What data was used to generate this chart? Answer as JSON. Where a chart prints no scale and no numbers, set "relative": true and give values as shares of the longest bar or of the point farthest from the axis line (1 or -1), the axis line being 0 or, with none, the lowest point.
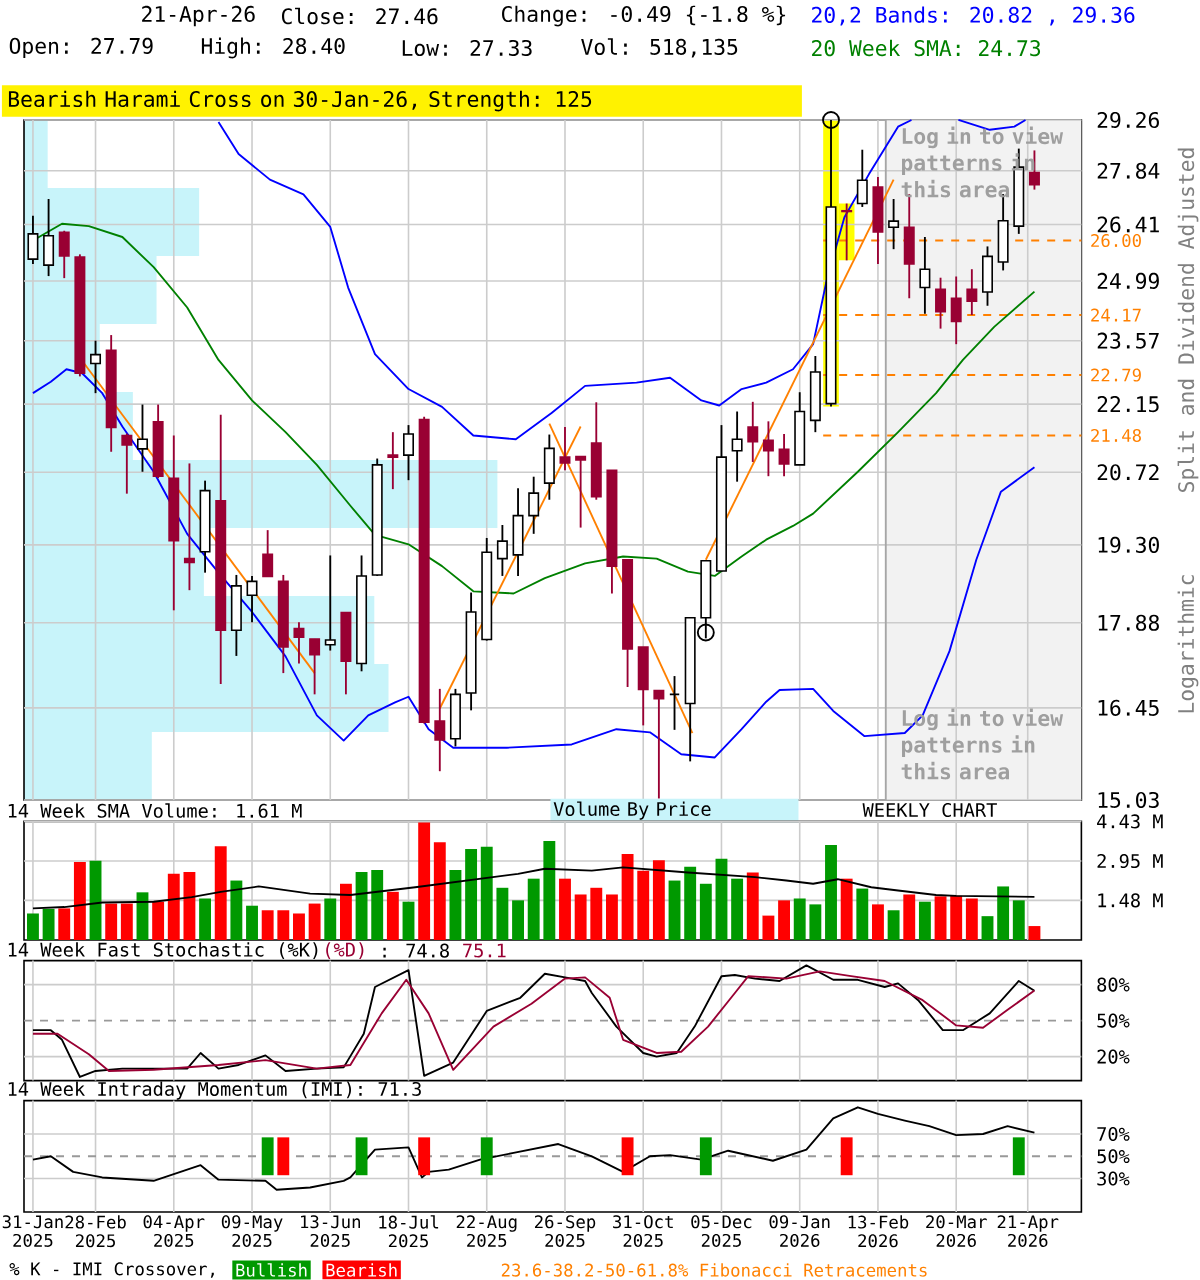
{
  "chart_data": [
    {
      "type": "candlestick",
      "title": "Bearish Harami Cross on 30-Jan-26, Strength: 125",
      "ylabel": "Split and Dividend Adjusted",
      "annotations": [
        "21-Apr-26",
        "Close: 27.46",
        "Change: -0.49 {-1.8 %}",
        "Open: 27.79",
        "High: 28.40",
        "Low: 27.33",
        "Vol: 518,135",
        "Log in to view patterns in this area",
        "Log in to view patterns in this area",
        "Logarithmic",
        "WEEKLY CHART",
        "23.6-38.2-50-61.8% Fibonacci Retracements",
        "Volume By Price"
      ],
      "x": [
        "2025-01-31",
        "2025-02-07",
        "2025-02-14",
        "2025-02-21",
        "2025-02-28",
        "2025-03-07",
        "2025-03-14",
        "2025-03-21",
        "2025-03-28",
        "2025-04-04",
        "2025-04-11",
        "2025-04-18",
        "2025-04-25",
        "2025-05-02",
        "2025-05-09",
        "2025-05-16",
        "2025-05-23",
        "2025-05-30",
        "2025-06-06",
        "2025-06-13",
        "2025-06-20",
        "2025-06-27",
        "2025-07-04",
        "2025-07-11",
        "2025-07-18",
        "2025-07-25",
        "2025-08-01",
        "2025-08-08",
        "2025-08-15",
        "2025-08-22",
        "2025-08-29",
        "2025-09-05",
        "2025-09-12",
        "2025-09-19",
        "2025-09-26",
        "2025-10-03",
        "2025-10-10",
        "2025-10-17",
        "2025-10-24",
        "2025-10-31",
        "2025-11-07",
        "2025-11-14",
        "2025-11-21",
        "2025-11-28",
        "2025-12-05",
        "2025-12-12",
        "2025-12-19",
        "2025-12-26",
        "2026-01-02",
        "2026-01-09",
        "2026-01-16",
        "2026-01-23",
        "2026-01-30",
        "2026-02-06",
        "2026-02-13",
        "2026-02-20",
        "2026-02-27",
        "2026-03-06",
        "2026-03-13",
        "2026-03-20",
        "2026-03-27",
        "2026-04-03",
        "2026-04-10",
        "2026-04-17",
        "2026-04-24"
      ],
      "ohlc": [
        [
          25.53,
          26.64,
          25.41,
          26.17
        ],
        [
          25.38,
          27.08,
          25.11,
          26.12
        ],
        [
          26.21,
          26.25,
          25.06,
          25.61
        ],
        [
          25.58,
          25.65,
          22.76,
          22.83
        ],
        [
          23.05,
          23.57,
          22.39,
          23.25
        ],
        [
          23.35,
          23.7,
          21.14,
          21.65
        ],
        [
          21.48,
          21.52,
          20.29,
          21.28
        ],
        [
          21.2,
          22.14,
          20.73,
          21.4
        ],
        [
          21.77,
          22.14,
          20.6,
          20.64
        ],
        [
          20.6,
          21.48,
          18.1,
          19.38
        ],
        [
          19.04,
          20.9,
          18.46,
          18.97
        ],
        [
          19.17,
          20.55,
          18.78,
          20.35
        ],
        [
          20.15,
          21.92,
          16.84,
          17.75
        ],
        [
          17.75,
          18.74,
          17.31,
          18.54
        ],
        [
          18.37,
          18.72,
          17.89,
          18.62
        ],
        [
          19.12,
          19.58,
          18.71,
          18.71
        ],
        [
          18.62,
          18.74,
          17.02,
          17.46
        ],
        [
          17.78,
          17.89,
          17.18,
          17.63
        ],
        [
          17.6,
          17.6,
          16.67,
          17.33
        ],
        [
          17.5,
          19.1,
          17.4,
          17.58
        ],
        [
          18.06,
          18.06,
          16.67,
          17.22
        ],
        [
          17.18,
          19.1,
          17.05,
          18.72
        ],
        [
          18.74,
          21.0,
          18.72,
          20.87
        ],
        [
          21.07,
          21.55,
          20.38,
          21.03
        ],
        [
          21.07,
          21.7,
          20.56,
          21.51
        ],
        [
          21.82,
          21.88,
          16.2,
          16.22
        ],
        [
          16.24,
          16.76,
          15.46,
          15.94
        ],
        [
          15.96,
          16.76,
          15.84,
          16.67
        ],
        [
          16.69,
          18.42,
          16.41,
          18.07
        ],
        [
          17.59,
          19.43,
          17.57,
          19.16
        ],
        [
          19.04,
          19.68,
          18.72,
          19.37
        ],
        [
          19.11,
          20.4,
          18.72,
          19.86
        ],
        [
          19.86,
          20.63,
          19.51,
          20.3
        ],
        [
          20.5,
          21.5,
          20.17,
          21.21
        ],
        [
          21.03,
          21.66,
          20.76,
          20.91
        ],
        [
          21.04,
          21.04,
          19.63,
          20.97
        ],
        [
          21.32,
          22.19,
          20.17,
          20.23
        ],
        [
          20.76,
          20.76,
          18.4,
          18.9
        ],
        [
          19.02,
          19.02,
          16.79,
          17.43
        ],
        [
          17.46,
          17.46,
          16.17,
          16.75
        ],
        [
          16.73,
          16.73,
          15.05,
          16.6
        ],
        [
          16.67,
          16.97,
          16.1,
          16.67
        ],
        [
          16.52,
          17.97,
          15.61,
          17.97
        ],
        [
          17.97,
          19.0,
          17.61,
          19.0
        ],
        [
          18.81,
          21.7,
          18.81,
          21.03
        ],
        [
          21.16,
          21.99,
          20.53,
          21.4
        ],
        [
          21.66,
          22.2,
          20.93,
          21.35
        ],
        [
          21.38,
          21.78,
          20.64,
          21.16
        ],
        [
          21.19,
          21.51,
          20.64,
          20.89
        ],
        [
          20.87,
          22.41,
          20.87,
          21.99
        ],
        [
          21.8,
          23.22,
          21.55,
          22.86
        ],
        [
          22.16,
          29.26,
          22.1,
          26.87
        ],
        [
          26.77,
          26.96,
          25.5,
          26.75
        ],
        [
          26.96,
          28.42,
          26.87,
          27.58
        ],
        [
          27.4,
          27.67,
          25.41,
          26.22
        ],
        [
          26.34,
          27.08,
          25.78,
          26.5
        ],
        [
          26.34,
          27.21,
          24.57,
          25.41
        ],
        [
          24.83,
          26.09,
          24.2,
          25.28
        ],
        [
          24.79,
          25.07,
          23.85,
          24.25
        ],
        [
          24.57,
          25.1,
          23.49,
          24.02
        ],
        [
          24.79,
          25.28,
          24.17,
          24.5
        ],
        [
          24.72,
          25.85,
          24.39,
          25.6
        ],
        [
          25.46,
          27.21,
          25.25,
          26.51
        ],
        [
          26.37,
          28.45,
          26.17,
          27.94
        ],
        [
          27.79,
          28.4,
          27.33,
          27.46
        ]
      ],
      "colors": [
        "#ffffff",
        "#ffffff",
        "#990033",
        "#990033",
        "#ffffff",
        "#990033",
        "#990033",
        "#ffffff",
        "#990033",
        "#990033",
        "#990033",
        "#ffffff",
        "#990033",
        "#ffffff",
        "#ffffff",
        "#990033",
        "#990033",
        "#990033",
        "#990033",
        "#ffffff",
        "#990033",
        "#ffffff",
        "#ffffff",
        "#990033",
        "#ffffff",
        "#990033",
        "#990033",
        "#ffffff",
        "#ffffff",
        "#ffffff",
        "#ffffff",
        "#ffffff",
        "#ffffff",
        "#ffffff",
        "#990033",
        "#990033",
        "#990033",
        "#990033",
        "#990033",
        "#990033",
        "#990033",
        "#000000",
        "#ffffff",
        "#ffffff",
        "#ffffff",
        "#ffffff",
        "#990033",
        "#990033",
        "#990033",
        "#ffffff",
        "#ffffff",
        "#ffffff",
        "#990033",
        "#ffffff",
        "#990033",
        "#ffffff",
        "#990033",
        "#ffffff",
        "#990033",
        "#990033",
        "#990033",
        "#ffffff",
        "#ffffff",
        "#ffffff",
        "#990033"
      ],
      "series": [
        {
          "name": "20,2 Bands: 20.82 , 29.36",
          "type": "line",
          "color": "#0000ff",
          "x": [
            "2025-04-24",
            "2025-05-03",
            "2025-05-17",
            "2025-06-01",
            "2025-06-13",
            "2025-06-21",
            "2025-07-03",
            "2025-07-18",
            "2025-08-02",
            "2025-08-16",
            "2025-09-04",
            "2025-09-20",
            "2025-10-05",
            "2025-10-28",
            "2025-11-12",
            "2025-11-26",
            "2025-12-04",
            "2025-12-14",
            "2025-12-25",
            "2026-01-06",
            "2026-01-15",
            "2026-01-21",
            "2026-01-29",
            "2026-02-09",
            "2026-02-22",
            "2026-02-28",
            "2026-03-10",
            "2026-03-21",
            "2026-04-04",
            "2026-04-15",
            "2026-04-20"
          ],
          "values": [
            29.2,
            28.3,
            27.6,
            27.2,
            26.35,
            24.83,
            23.26,
            22.48,
            22.09,
            21.48,
            21.4,
            21.96,
            22.55,
            22.62,
            22.73,
            22.23,
            22.12,
            22.48,
            22.62,
            22.92,
            23.49,
            24.99,
            26.6,
            27.75,
            29.07,
            29.26,
            null,
            29.26,
            28.98,
            29.07,
            29.26
          ]
        },
        {
          "type": "line",
          "color": "#0000ff",
          "x": [
            "2025-01-31",
            "2025-02-08",
            "2025-02-15",
            "2025-02-22",
            "2025-03-03",
            "2025-03-12",
            "2025-03-26",
            "2025-04-10",
            "2025-04-24",
            "2025-05-09",
            "2025-05-24",
            "2025-06-07",
            "2025-06-19",
            "2025-06-30",
            "2025-07-12",
            "2025-07-18",
            "2025-07-27",
            "2025-08-07",
            "2025-08-31",
            "2025-09-29",
            "2025-10-19",
            "2025-11-03",
            "2025-11-17",
            "2025-12-02",
            "2025-12-14",
            "2025-12-25",
            "2025-12-31",
            "2026-01-15",
            "2026-01-24",
            "2026-02-07",
            "2026-02-25",
            "2026-03-05",
            "2026-03-17",
            "2026-03-29",
            "2026-04-09",
            "2026-04-24"
          ],
          "values": [
            22.39,
            22.64,
            22.92,
            22.83,
            22.39,
            21.67,
            20.73,
            19.51,
            18.78,
            18.07,
            17.3,
            16.33,
            15.93,
            16.33,
            16.54,
            16.63,
            16.11,
            15.82,
            15.82,
            15.87,
            16.11,
            16.06,
            15.72,
            15.67,
            16.11,
            16.55,
            16.74,
            16.76,
            16.4,
            16.0,
            16.05,
            16.33,
            17.39,
            19.02,
            20.33,
            20.82
          ]
        },
        {
          "name": "20 Week SMA: 24.73",
          "type": "line",
          "color": "#008000",
          "x": [
            "2025-01-31",
            "2025-02-13",
            "2025-02-25",
            "2025-03-12",
            "2025-03-26",
            "2025-04-10",
            "2025-04-24",
            "2025-05-09",
            "2025-05-24",
            "2025-06-07",
            "2025-06-22",
            "2025-07-03",
            "2025-07-18",
            "2025-08-02",
            "2025-08-16",
            "2025-09-03",
            "2025-09-17",
            "2025-10-05",
            "2025-10-22",
            "2025-11-06",
            "2025-11-20",
            "2025-12-02",
            "2025-12-14",
            "2025-12-25",
            "2026-01-06",
            "2026-01-15",
            "2026-02-04",
            "2026-02-22",
            "2026-03-11",
            "2026-03-23",
            "2026-04-06",
            "2026-04-24"
          ],
          "values": [
            26.0,
            26.43,
            26.37,
            26.09,
            25.33,
            24.35,
            23.13,
            22.23,
            21.55,
            20.87,
            20.05,
            19.49,
            19.31,
            18.9,
            18.44,
            18.4,
            18.68,
            18.95,
            19.08,
            19.04,
            18.8,
            18.72,
            19.08,
            19.4,
            19.66,
            19.9,
            20.73,
            21.55,
            22.39,
            23.13,
            23.89,
            24.73
          ]
        },
        {
          "type": "line",
          "color": "#ff8000",
          "x": [
            "2025-02-21",
            "2025-06-06"
          ],
          "values": [
            23.18,
            17.02
          ]
        },
        {
          "type": "line",
          "color": "#ff8000",
          "x": [
            "2025-08-01",
            "2025-10-03"
          ],
          "values": [
            16.44,
            21.67
          ]
        },
        {
          "type": "line",
          "color": "#ff8000",
          "x": [
            "2025-09-19",
            "2025-11-22"
          ],
          "values": [
            21.73,
            16.05
          ]
        },
        {
          "type": "line",
          "color": "#ff8000",
          "x": [
            "2025-11-28",
            "2026-02-20"
          ],
          "values": [
            19.02,
            27.6
          ]
        },
        {
          "type": "scatter",
          "marker": "circle",
          "color": "#000000",
          "x": [
            "2025-11-28",
            "2026-01-23"
          ],
          "values": [
            17.71,
            29.26
          ]
        }
      ],
      "ref_lines": [
        {
          "axis": "y",
          "value": 26.0,
          "label": "26.00",
          "color": "#ff8000",
          "line_style": "dashed"
        },
        {
          "axis": "y",
          "value": 24.17,
          "label": "24.17",
          "color": "#ff8000",
          "line_style": "dashed"
        },
        {
          "axis": "y",
          "value": 22.79,
          "label": "22.79",
          "color": "#ff8000",
          "line_style": "dashed"
        },
        {
          "axis": "y",
          "value": 21.48,
          "label": "21.48",
          "color": "#ff8000",
          "line_style": "dashed"
        },
        {
          "axis": "x",
          "value": "2026-02-16T12:00",
          "color": "#a6a6a6"
        }
      ],
      "bands": [
        {
          "axis": "x",
          "from": "2026-02-16T12:00",
          "to": "2026-05-15",
          "color": "#f2f2f2"
        },
        {
          "axis": "x",
          "from": "2026-01-19T12:00",
          "to": "2026-01-26T12:00",
          "color": "#ffff00"
        },
        {
          "axis": "x",
          "from": "2026-01-26T12:00",
          "to": "2026-02-02T12:00",
          "color": "#ffff00"
        }
      ],
      "xlim": [
        "2025-01-27",
        "2026-05-15"
      ],
      "xticks": [
        "2025-01-31",
        "2025-02-28",
        "2025-04-04",
        "2025-05-09",
        "2025-06-13",
        "2025-07-18",
        "2025-08-22",
        "2025-09-26",
        "2025-10-31",
        "2025-12-05",
        "2026-01-09",
        "2026-02-13",
        "2026-03-20",
        "2026-04-21"
      ],
      "ylim": [
        15.03,
        29.26
      ],
      "yticks": [
        15.03,
        16.45,
        17.88,
        {
          "value": 19.3,
          "label": "19.30"
        },
        20.72,
        22.15,
        23.57,
        24.99,
        26.41,
        27.84,
        29.26
      ],
      "log": "y",
      "grid": true,
      "legend": "top right",
      "tick_labels": "y"
    },
    {
      "type": "bar",
      "orientation": "horizontal",
      "relative": true,
      "color": "#c8f4fa",
      "categories": [
        null,
        null,
        null,
        null,
        null,
        null,
        null,
        null,
        null,
        null
      ],
      "values": [
        0.05,
        0.37,
        0.28,
        0.16,
        0.23,
        1,
        0.38,
        0.74,
        0.77,
        0.27
      ]
    },
    {
      "type": "bar",
      "title": "14 Week SMA Volume: 1.61 M",
      "x": [
        "2025-01-31",
        "2025-02-07",
        "2025-02-14",
        "2025-02-21",
        "2025-02-28",
        "2025-03-07",
        "2025-03-14",
        "2025-03-21",
        "2025-03-28",
        "2025-04-04",
        "2025-04-11",
        "2025-04-18",
        "2025-04-25",
        "2025-05-02",
        "2025-05-09",
        "2025-05-16",
        "2025-05-23",
        "2025-05-30",
        "2025-06-06",
        "2025-06-13",
        "2025-06-20",
        "2025-06-27",
        "2025-07-04",
        "2025-07-11",
        "2025-07-18",
        "2025-07-25",
        "2025-08-01",
        "2025-08-08",
        "2025-08-15",
        "2025-08-22",
        "2025-08-29",
        "2025-09-05",
        "2025-09-12",
        "2025-09-19",
        "2025-09-26",
        "2025-10-03",
        "2025-10-10",
        "2025-10-17",
        "2025-10-24",
        "2025-10-31",
        "2025-11-07",
        "2025-11-14",
        "2025-11-21",
        "2025-11-28",
        "2025-12-05",
        "2025-12-12",
        "2025-12-19",
        "2025-12-26",
        "2026-01-02",
        "2026-01-09",
        "2026-01-16",
        "2026-01-23",
        "2026-01-30",
        "2026-02-06",
        "2026-02-13",
        "2026-02-20",
        "2026-02-27",
        "2026-03-06",
        "2026-03-13",
        "2026-03-20",
        "2026-03-27",
        "2026-04-03",
        "2026-04-10",
        "2026-04-17",
        "2026-04-24"
      ],
      "series": [
        {
          "values": [
            0.99,
            1.16,
            1.18,
            2.91,
            2.96,
            1.36,
            1.36,
            1.78,
            1.43,
            2.47,
            2.54,
            1.55,
            3.5,
            2.22,
            1.28,
            1.11,
            1.11,
            0.99,
            1.36,
            1.55,
            2.1,
            2.54,
            2.61,
            1.8,
            1.43,
            4.39,
            3.65,
            2.61,
            3.4,
            3.48,
            1.95,
            1.48,
            2.29,
            3.7,
            2.29,
            1.7,
            1.95,
            1.7,
            3.21,
            2.59,
            2.98,
            2.22,
            2.74,
            2.1,
            3.03,
            2.29,
            2.52,
            0.91,
            1.48,
            1.55,
            1.33,
            3.55,
            2.29,
            1.92,
            1.33,
            1.11,
            1.7,
            1.43,
            1.63,
            1.65,
            1.55,
            0.89,
            2.0,
            1.48,
            0.52
          ],
          "colors": [
            "#009900",
            "#009900",
            "#ff0000",
            "#ff0000",
            "#009900",
            "#ff0000",
            "#ff0000",
            "#009900",
            "#ff0000",
            "#ff0000",
            "#ff0000",
            "#009900",
            "#ff0000",
            "#009900",
            "#009900",
            "#ff0000",
            "#ff0000",
            "#ff0000",
            "#ff0000",
            "#009900",
            "#ff0000",
            "#009900",
            "#009900",
            "#ff0000",
            "#009900",
            "#ff0000",
            "#ff0000",
            "#009900",
            "#009900",
            "#009900",
            "#009900",
            "#009900",
            "#009900",
            "#009900",
            "#ff0000",
            "#ff0000",
            "#ff0000",
            "#ff0000",
            "#ff0000",
            "#ff0000",
            "#ff0000",
            "#009900",
            "#009900",
            "#009900",
            "#009900",
            "#009900",
            "#ff0000",
            "#ff0000",
            "#ff0000",
            "#009900",
            "#009900",
            "#009900",
            "#ff0000",
            "#009900",
            "#ff0000",
            "#009900",
            "#ff0000",
            "#009900",
            "#ff0000",
            "#ff0000",
            "#ff0000",
            "#009900",
            "#009900",
            "#009900",
            "#ff0000"
          ]
        },
        {
          "type": "line",
          "color": "#000000",
          "x": [
            "2025-01-31",
            "2025-02-14",
            "2025-03-03",
            "2025-03-26",
            "2025-04-12",
            "2025-04-25",
            "2025-05-12",
            "2025-06-04",
            "2025-06-22",
            "2025-07-21",
            "2025-08-13",
            "2025-09-05",
            "2025-09-17",
            "2025-10-08",
            "2025-10-22",
            "2025-11-20",
            "2025-12-20",
            "2026-01-03",
            "2026-01-15",
            "2026-01-26",
            "2026-02-10",
            "2026-02-22",
            "2026-03-11",
            "2026-03-20",
            "2026-04-24"
          ],
          "values": [
            1.18,
            1.23,
            1.4,
            1.43,
            1.6,
            1.8,
            2.0,
            1.73,
            1.68,
            1.97,
            2.22,
            2.47,
            2.66,
            2.59,
            2.71,
            2.52,
            2.35,
            2.22,
            2.1,
            2.27,
            1.97,
            1.85,
            1.68,
            1.65,
            1.61
          ]
        }
      ],
      "xlim": [
        "2025-01-27",
        "2026-05-15"
      ],
      "xticks": [
        "2025-01-31",
        "2025-02-28",
        "2025-04-04",
        "2025-05-09",
        "2025-06-13",
        "2025-07-18",
        "2025-08-22",
        "2025-09-26",
        "2025-10-31",
        "2025-12-05",
        "2026-01-09",
        "2026-02-13",
        "2026-03-20",
        "2026-04-21"
      ],
      "ylim": [
        0,
        4.43
      ],
      "yticks": [
        {
          "value": 1.48,
          "label": "1.48 M"
        },
        {
          "value": 2.95,
          "label": "2.95 M"
        },
        {
          "value": 4.43,
          "label": "4.43 M"
        }
      ],
      "grid": true,
      "tick_labels": "y"
    },
    {
      "type": "line",
      "title": "14 Week Fast Stochastic (%K)",
      "annotations": [
        ": 74.8",
        "75.1"
      ],
      "series": [
        {
          "color": "#000000",
          "x": [
            "2025-01-31",
            "2025-02-08",
            "2025-02-13",
            "2025-02-21",
            "2025-02-28",
            "2025-03-12",
            "2025-03-26",
            "2025-04-10",
            "2025-04-16",
            "2025-04-24",
            "2025-05-03",
            "2025-05-15",
            "2025-05-24",
            "2025-06-07",
            "2025-06-19",
            "2025-06-28",
            "2025-07-03",
            "2025-07-18",
            "2025-07-25",
            "2025-08-07",
            "2025-08-22",
            "2025-09-06",
            "2025-09-17",
            "2025-09-26",
            "2025-10-05",
            "2025-10-08",
            "2025-10-19",
            "2025-10-31",
            "2025-11-06",
            "2025-11-15",
            "2025-11-23",
            "2025-12-05",
            "2025-12-11",
            "2025-12-20",
            "2025-12-31",
            "2026-01-12",
            "2026-01-24",
            "2026-02-04",
            "2026-02-16",
            "2026-02-22",
            "2026-03-03",
            "2026-03-14",
            "2026-03-23",
            "2026-04-04",
            "2026-04-17",
            "2026-04-24"
          ],
          "values": [
            42,
            42,
            34,
            3,
            8,
            10,
            10,
            10,
            23,
            10,
            13,
            21,
            8,
            10,
            11,
            39,
            78,
            92,
            4,
            15,
            58,
            69,
            89,
            86,
            83,
            73,
            45,
            23,
            20,
            23,
            45,
            87,
            88,
            85,
            83,
            96,
            84,
            84,
            78,
            81,
            67,
            42,
            42,
            56,
            83,
            74.8
          ]
        },
        {
          "name": "(%D)",
          "color": "#990033",
          "x": [
            "2025-01-31",
            "2025-02-11",
            "2025-02-25",
            "2025-03-06",
            "2025-03-26",
            "2025-04-24",
            "2025-05-15",
            "2025-06-07",
            "2025-06-22",
            "2025-07-06",
            "2025-07-17",
            "2025-07-27",
            "2025-08-07",
            "2025-08-25",
            "2025-09-11",
            "2025-09-26",
            "2025-10-05",
            "2025-10-16",
            "2025-10-22",
            "2025-11-06",
            "2025-11-17",
            "2025-11-29",
            "2025-12-11",
            "2025-12-17",
            "2026-01-03",
            "2026-01-18",
            "2026-02-01",
            "2026-02-16",
            "2026-03-05",
            "2026-03-20",
            "2026-04-01",
            "2026-04-12",
            "2026-04-24"
          ],
          "values": [
            39,
            39,
            22,
            8,
            9,
            13,
            17,
            10,
            13,
            56,
            84,
            56,
            9,
            45,
            64,
            85,
            86,
            69,
            34,
            23,
            24,
            45,
            73,
            87,
            85,
            91,
            87,
            83,
            67,
            46,
            44,
            59,
            75.1
          ]
        }
      ],
      "ref_lines": [
        {
          "axis": "y",
          "value": 50,
          "color": "#999999",
          "line_style": "dashed"
        }
      ],
      "xlim": [
        "2025-01-27",
        "2026-05-15"
      ],
      "xticks": [
        "2025-01-31",
        "2025-02-28",
        "2025-04-04",
        "2025-05-09",
        "2025-06-13",
        "2025-07-18",
        "2025-08-22",
        "2025-09-26",
        "2025-10-31",
        "2025-12-05",
        "2026-01-09",
        "2026-02-13",
        "2026-03-20",
        "2026-04-21"
      ],
      "ylim": [
        0,
        100
      ],
      "yticks": [
        {
          "value": 20,
          "label": "20%"
        },
        {
          "value": 50,
          "label": "50%"
        },
        {
          "value": 80,
          "label": "80%"
        }
      ],
      "grid": true,
      "legend": "top left",
      "tick_labels": "y"
    },
    {
      "type": "line",
      "title": "14 Week Intraday Momentum (IMI): 71.3",
      "legend_title": "% K - IMI Crossover,",
      "series": [
        {
          "color": "#000000",
          "x": [
            "2025-01-31",
            "2025-02-08",
            "2025-02-18",
            "2025-03-03",
            "2025-03-26",
            "2025-04-16",
            "2025-04-24",
            "2025-05-15",
            "2025-05-20",
            "2025-06-04",
            "2025-06-19",
            "2025-06-22",
            "2025-07-03",
            "2025-07-18",
            "2025-07-24",
            "2025-07-27",
            "2025-08-05",
            "2025-08-19",
            "2025-09-03",
            "2025-09-23",
            "2025-10-08",
            "2025-10-22",
            "2025-11-03",
            "2025-11-12",
            "2025-11-26",
            "2025-12-08",
            "2025-12-28",
            "2026-01-12",
            "2026-01-24",
            "2026-02-04",
            "2026-02-13",
            "2026-02-25",
            "2026-03-08",
            "2026-03-20",
            "2026-04-01",
            "2026-04-12",
            "2026-04-24"
          ],
          "values": [
            47,
            50,
            36,
            31,
            28,
            42,
            29,
            28,
            20,
            22,
            28,
            31,
            56,
            58,
            31,
            36,
            38,
            47,
            53,
            61,
            50,
            36,
            50,
            51,
            47,
            55,
            46,
            56,
            84,
            94,
            88,
            82,
            77,
            69,
            70,
            77,
            71.3
          ]
        },
        {
          "name": "Bullish",
          "type": "bar",
          "color": "#009900",
          "x": [
            "2025-05-16",
            "2025-06-27",
            "2025-08-22",
            "2025-11-28",
            "2026-04-17"
          ],
          "base": [
            33,
            33,
            33,
            33,
            33
          ],
          "values": [
            34,
            34,
            34,
            34,
            34
          ]
        },
        {
          "name": "Bearish",
          "type": "bar",
          "color": "#ff0000",
          "x": [
            "2025-05-23",
            "2025-07-25",
            "2025-10-24",
            "2026-01-30"
          ],
          "base": [
            33,
            33,
            33,
            33
          ],
          "values": [
            34,
            34,
            34,
            34
          ]
        }
      ],
      "ref_lines": [
        {
          "axis": "y",
          "value": 50,
          "color": "#999999",
          "line_style": "dashed"
        }
      ],
      "xlim": [
        "2025-01-27",
        "2026-05-15"
      ],
      "xticks": [
        {
          "value": "2025-01-31",
          "label": "31-Jan 2025"
        },
        {
          "value": "2025-02-28",
          "label": "28-Feb 2025"
        },
        {
          "value": "2025-04-04",
          "label": "04-Apr 2025"
        },
        {
          "value": "2025-05-09",
          "label": "09-May 2025"
        },
        {
          "value": "2025-06-13",
          "label": "13-Jun 2025"
        },
        {
          "value": "2025-07-18",
          "label": "18-Jul 2025"
        },
        {
          "value": "2025-08-22",
          "label": "22-Aug 2025"
        },
        {
          "value": "2025-09-26",
          "label": "26-Sep 2025"
        },
        {
          "value": "2025-10-31",
          "label": "31-Oct 2025"
        },
        {
          "value": "2025-12-05",
          "label": "05-Dec 2025"
        },
        {
          "value": "2026-01-09",
          "label": "09-Jan 2026"
        },
        {
          "value": "2026-02-13",
          "label": "13-Feb 2026"
        },
        {
          "value": "2026-03-20",
          "label": "20-Mar 2026"
        },
        {
          "value": "2026-04-21",
          "label": "21-Apr 2026"
        }
      ],
      "ylim": [
        0,
        100
      ],
      "yticks": [
        {
          "value": 30,
          "label": "30%"
        },
        {
          "value": 50,
          "label": "50%"
        },
        {
          "value": 70,
          "label": "70%"
        }
      ],
      "grid": true,
      "legend": "bottom"
    }
  ]
}
